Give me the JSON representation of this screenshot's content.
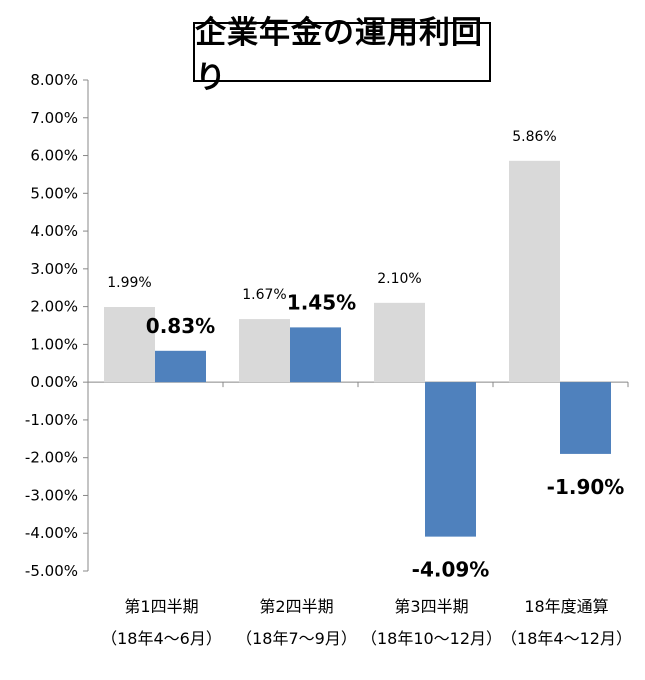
{
  "chart_data": {
    "type": "bar",
    "title": "企業年金の運用利回り",
    "categories": [
      [
        "第1四半期",
        "（18年4～6月）"
      ],
      [
        "第2四半期",
        "（18年7～9月）"
      ],
      [
        "第3四半期",
        "（18年10～12月）"
      ],
      [
        "18年度通算",
        "（18年4～12月）"
      ]
    ],
    "series": [
      {
        "color": "#d9d9d9",
        "values": [
          1.99,
          1.67,
          2.1,
          5.86
        ],
        "labels": [
          "1.99%",
          "1.67%",
          "2.10%",
          "5.86%"
        ]
      },
      {
        "color": "#4f81bd",
        "values": [
          0.83,
          1.45,
          -4.09,
          -1.9
        ],
        "labels": [
          "0.83%",
          "1.45%",
          "-4.09%",
          "-1.90%"
        ]
      }
    ],
    "ylim": [
      -5,
      8
    ],
    "yticks": [
      "8.00%",
      "7.00%",
      "6.00%",
      "5.00%",
      "4.00%",
      "3.00%",
      "2.00%",
      "1.00%",
      "0.00%",
      "-1.00%",
      "-2.00%",
      "-3.00%",
      "-4.00%",
      "-5.00%"
    ],
    "xlabel": "",
    "ylabel": "",
    "grid": false,
    "legend": "none"
  }
}
